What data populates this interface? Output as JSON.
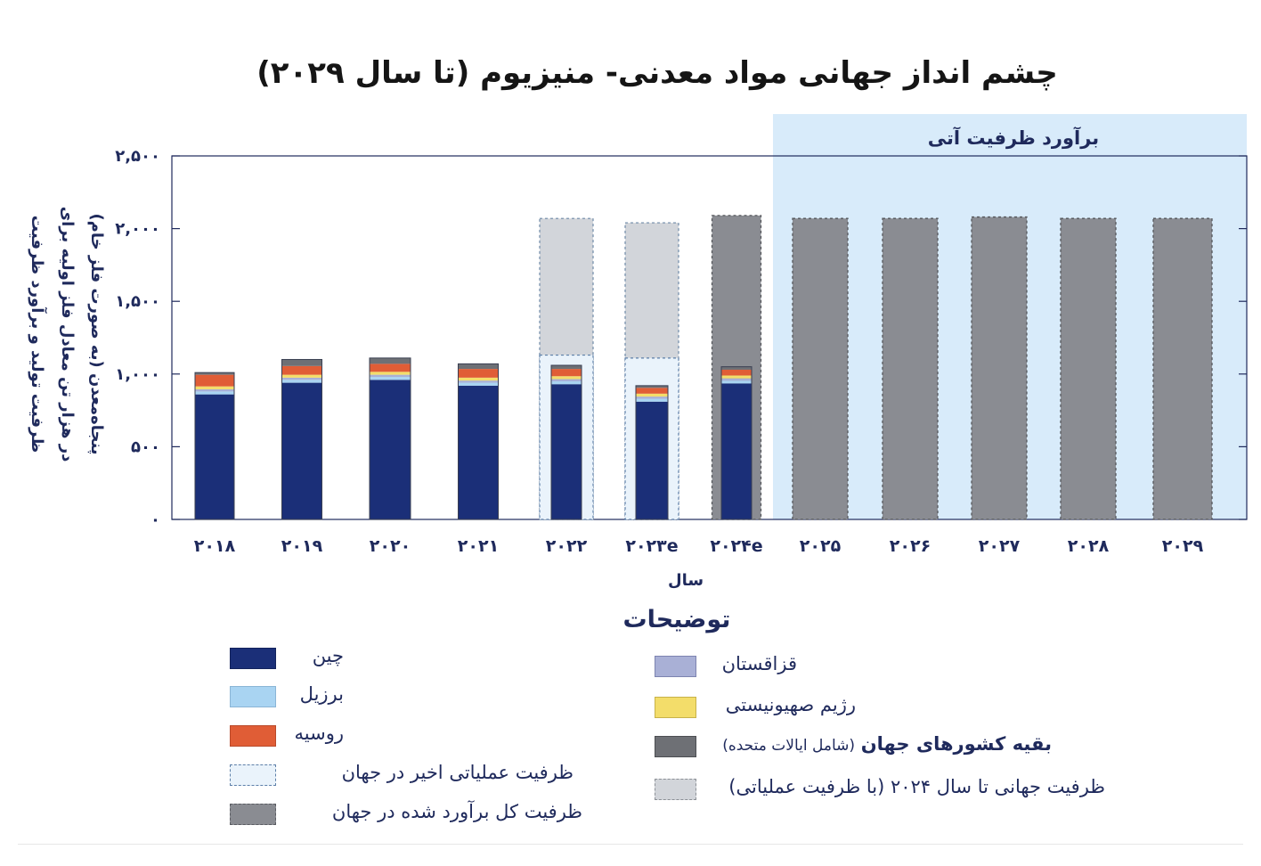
{
  "title": "چشم انداز جهانی مواد معدنی- منیزیوم (تا سال ۲۰۲۹)",
  "projection_label": "برآورد ظرفیت آتی",
  "y_axis_label_lines": [
    "ظرفیت تولید و برآورد ظرفیت",
    "در هزار تن معادل فلز اولیه برای",
    "پنجاه‌معدن (به صورت فلز خام)"
  ],
  "x_axis_label": "سال",
  "y_tick_labels": [
    "۲,۵۰۰",
    "۲,۰۰۰",
    "۱,۵۰۰",
    "۱,۰۰۰",
    "۵۰۰",
    "۰"
  ],
  "x_tick_labels": [
    "۲۰۱۸",
    "۲۰۱۹",
    "۲۰۲۰",
    "۲۰۲۱",
    "۲۰۲۲",
    "۲۰۲۳e",
    "۲۰۲۴e",
    "۲۰۲۵",
    "۲۰۲۶",
    "۲۰۲۷",
    "۲۰۲۸",
    "۲۰۲۹"
  ],
  "legend": {
    "title": "توضیحات",
    "china": "چین",
    "brazil": "برزیل",
    "russia": "روسیه",
    "recent_capacity": "ظرفیت عملیاتی اخیر  در جهان",
    "total_capacity": "ظرفیت کل برآورد شده در جهان",
    "kazakhstan": "قزاقستان",
    "israel": "رژیم صهیونیستی",
    "rest_bold": "بقیه کشورهای جهان",
    "rest_note": "(شامل ایالات متحده)",
    "world_2024": "ظرفیت جهانی تا سال ۲۰۲۴ (با ظرفیت عملیاتی)"
  },
  "colors": {
    "china": "#1b2f78",
    "brazil": "#a9d4f2",
    "russia": "#e05d36",
    "kazakhstan": "#a9b0d6",
    "israel": "#f3dd6a",
    "rest": "#6e7075",
    "recent_capacity_fill": "#eaf3fb",
    "total_capacity_fill": "#8a8c92",
    "world_2024_fill": "#d2d5da",
    "projection_bg": "#d8ebfa"
  },
  "chart_data": {
    "type": "bar",
    "stacked": true,
    "title": "چشم انداز جهانی مواد معدنی- منیزیوم (تا سال ۲۰۲۹)",
    "xlabel": "سال",
    "ylabel": "ظرفیت تولید و برآورد ظرفیت در هزار تن معادل فلز اولیه برای پنجاه‌معدن (به صورت فلز خام)",
    "ylim": [
      0,
      2500
    ],
    "categories": [
      "2018",
      "2019",
      "2020",
      "2021",
      "2022",
      "2023e",
      "2024e",
      "2025",
      "2026",
      "2027",
      "2028",
      "2029"
    ],
    "series": [
      {
        "name": "چین",
        "values": [
          860,
          940,
          960,
          920,
          930,
          810,
          935,
          0,
          0,
          0,
          0,
          0
        ]
      },
      {
        "name": "برزیل",
        "values": [
          20,
          20,
          20,
          20,
          20,
          20,
          20,
          0,
          0,
          0,
          0,
          0
        ]
      },
      {
        "name": "قزاقستان",
        "values": [
          15,
          15,
          15,
          15,
          15,
          15,
          15,
          0,
          0,
          0,
          0,
          0
        ]
      },
      {
        "name": "رژیم صهیونیستی",
        "values": [
          20,
          20,
          20,
          20,
          20,
          20,
          20,
          0,
          0,
          0,
          0,
          0
        ]
      },
      {
        "name": "روسیه",
        "values": [
          80,
          60,
          55,
          60,
          50,
          40,
          40,
          0,
          0,
          0,
          0,
          0
        ]
      },
      {
        "name": "بقیه کشورهای جهان",
        "values": [
          15,
          45,
          40,
          35,
          25,
          15,
          20,
          0,
          0,
          0,
          0,
          0
        ]
      }
    ],
    "recent_operating_capacity": [
      null,
      null,
      null,
      null,
      1130,
      1110,
      null,
      null,
      null,
      null,
      null,
      null
    ],
    "world_capacity_to_2024": [
      null,
      null,
      null,
      null,
      2070,
      2040,
      null,
      null,
      null,
      null,
      null,
      null
    ],
    "total_estimated_capacity": [
      null,
      null,
      null,
      null,
      null,
      null,
      2090,
      2070,
      2070,
      2080,
      2070,
      2070
    ],
    "projection_start": "2025",
    "grid": false,
    "legend_position": "bottom"
  }
}
